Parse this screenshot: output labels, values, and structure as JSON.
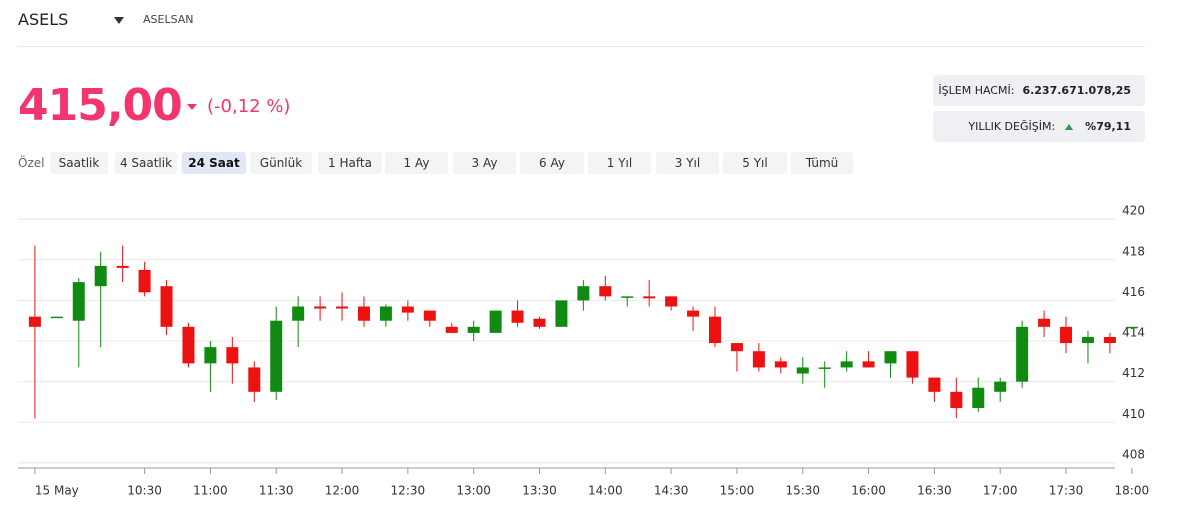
{
  "header": {
    "symbol": "ASELS",
    "name": "ASELSAN",
    "price": "415,00",
    "change": "(-0,12 %)"
  },
  "stats": [
    {
      "label": "İŞLEM HACMİ:",
      "value": "6.237.671.078,25"
    },
    {
      "label": "YILLIK DEĞİŞİM:",
      "value": "%79,11"
    }
  ],
  "tabs": [
    "Özel",
    "Saatlik",
    "4 Saatlik",
    "24 Saat",
    "Günlük",
    "1 Hafta",
    "1 Ay",
    "3 Ay",
    "6 Ay",
    "1 Yıl",
    "3 Yıl",
    "5 Yıl",
    "Tümü"
  ],
  "active_tab": 3,
  "chart_data": {
    "type": "candlestick",
    "up_color": "#118a11",
    "down_color": "#ee1111",
    "open": [
      415.2,
      415.2,
      415.0,
      416.7,
      417.7,
      417.5,
      416.7,
      414.7,
      412.9,
      413.7,
      412.7,
      411.5,
      415.0,
      415.7,
      415.7,
      415.7,
      415.0,
      415.7,
      415.5,
      414.7,
      414.4,
      414.4,
      415.5,
      415.1,
      414.7,
      416.0,
      416.7,
      416.2,
      416.2,
      416.2,
      415.5,
      415.2,
      413.9,
      413.5,
      413.0,
      412.4,
      412.7,
      412.7,
      413.0,
      412.9,
      413.5,
      412.2,
      411.5,
      410.7,
      411.5,
      412.0,
      415.1,
      414.7,
      413.9,
      414.2,
      414.7
    ],
    "high": [
      418.7,
      415.2,
      417.1,
      418.4,
      418.7,
      417.9,
      417.0,
      414.9,
      414.0,
      414.2,
      413.0,
      415.7,
      416.2,
      416.2,
      416.4,
      416.2,
      415.8,
      416.0,
      415.5,
      414.9,
      415.0,
      415.5,
      416.0,
      415.2,
      416.0,
      417.0,
      417.2,
      416.2,
      417.0,
      416.2,
      415.7,
      415.7,
      413.9,
      413.9,
      413.2,
      413.2,
      413.0,
      413.5,
      413.5,
      413.5,
      413.5,
      412.2,
      412.2,
      412.2,
      412.2,
      415.0,
      415.5,
      415.2,
      414.5,
      414.4,
      414.7
    ],
    "low": [
      410.2,
      415.2,
      412.7,
      413.7,
      416.9,
      416.2,
      414.3,
      412.7,
      411.5,
      411.9,
      411.0,
      411.1,
      413.7,
      415.0,
      415.0,
      414.7,
      414.7,
      415.0,
      414.7,
      414.4,
      414.0,
      414.4,
      414.7,
      414.6,
      414.7,
      415.5,
      416.0,
      415.7,
      415.7,
      415.5,
      414.5,
      413.7,
      412.5,
      412.5,
      412.4,
      411.9,
      411.7,
      412.5,
      412.7,
      412.2,
      411.9,
      411.0,
      410.2,
      410.5,
      411.0,
      411.7,
      414.2,
      413.4,
      412.9,
      413.4,
      414.7
    ],
    "close": [
      414.7,
      415.2,
      416.9,
      417.7,
      417.6,
      416.4,
      414.7,
      412.9,
      413.7,
      412.9,
      411.5,
      415.0,
      415.7,
      415.6,
      415.6,
      415.0,
      415.7,
      415.4,
      415.0,
      414.4,
      414.7,
      415.5,
      414.9,
      414.7,
      416.0,
      416.7,
      416.2,
      416.2,
      416.1,
      415.7,
      415.2,
      413.9,
      413.5,
      412.7,
      412.7,
      412.7,
      412.7,
      413.0,
      412.7,
      413.5,
      412.2,
      411.5,
      410.7,
      411.7,
      412.0,
      414.7,
      414.7,
      413.9,
      414.2,
      413.9,
      414.7
    ],
    "xlim": [
      -0.77,
      50.6
    ],
    "xticks": [
      {
        "value": 0,
        "label": "15 May"
      },
      {
        "value": 5,
        "label": "10:30"
      },
      {
        "value": 8,
        "label": "11:00"
      },
      {
        "value": 11,
        "label": "11:30"
      },
      {
        "value": 14,
        "label": "12:00"
      },
      {
        "value": 17,
        "label": "12:30"
      },
      {
        "value": 20,
        "label": "13:00"
      },
      {
        "value": 23,
        "label": "13:30"
      },
      {
        "value": 26,
        "label": "14:00"
      },
      {
        "value": 29,
        "label": "14:30"
      },
      {
        "value": 32,
        "label": "15:00"
      },
      {
        "value": 35,
        "label": "15:30"
      },
      {
        "value": 38,
        "label": "16:00"
      },
      {
        "value": 41,
        "label": "16:30"
      },
      {
        "value": 44,
        "label": "17:00"
      },
      {
        "value": 47,
        "label": "17:30"
      },
      {
        "value": 50,
        "label": "18:00"
      }
    ],
    "ylim": [
      407.75,
      420.5
    ],
    "yticks": [
      408,
      410,
      412,
      414,
      416,
      418,
      420
    ],
    "grid": true
  }
}
